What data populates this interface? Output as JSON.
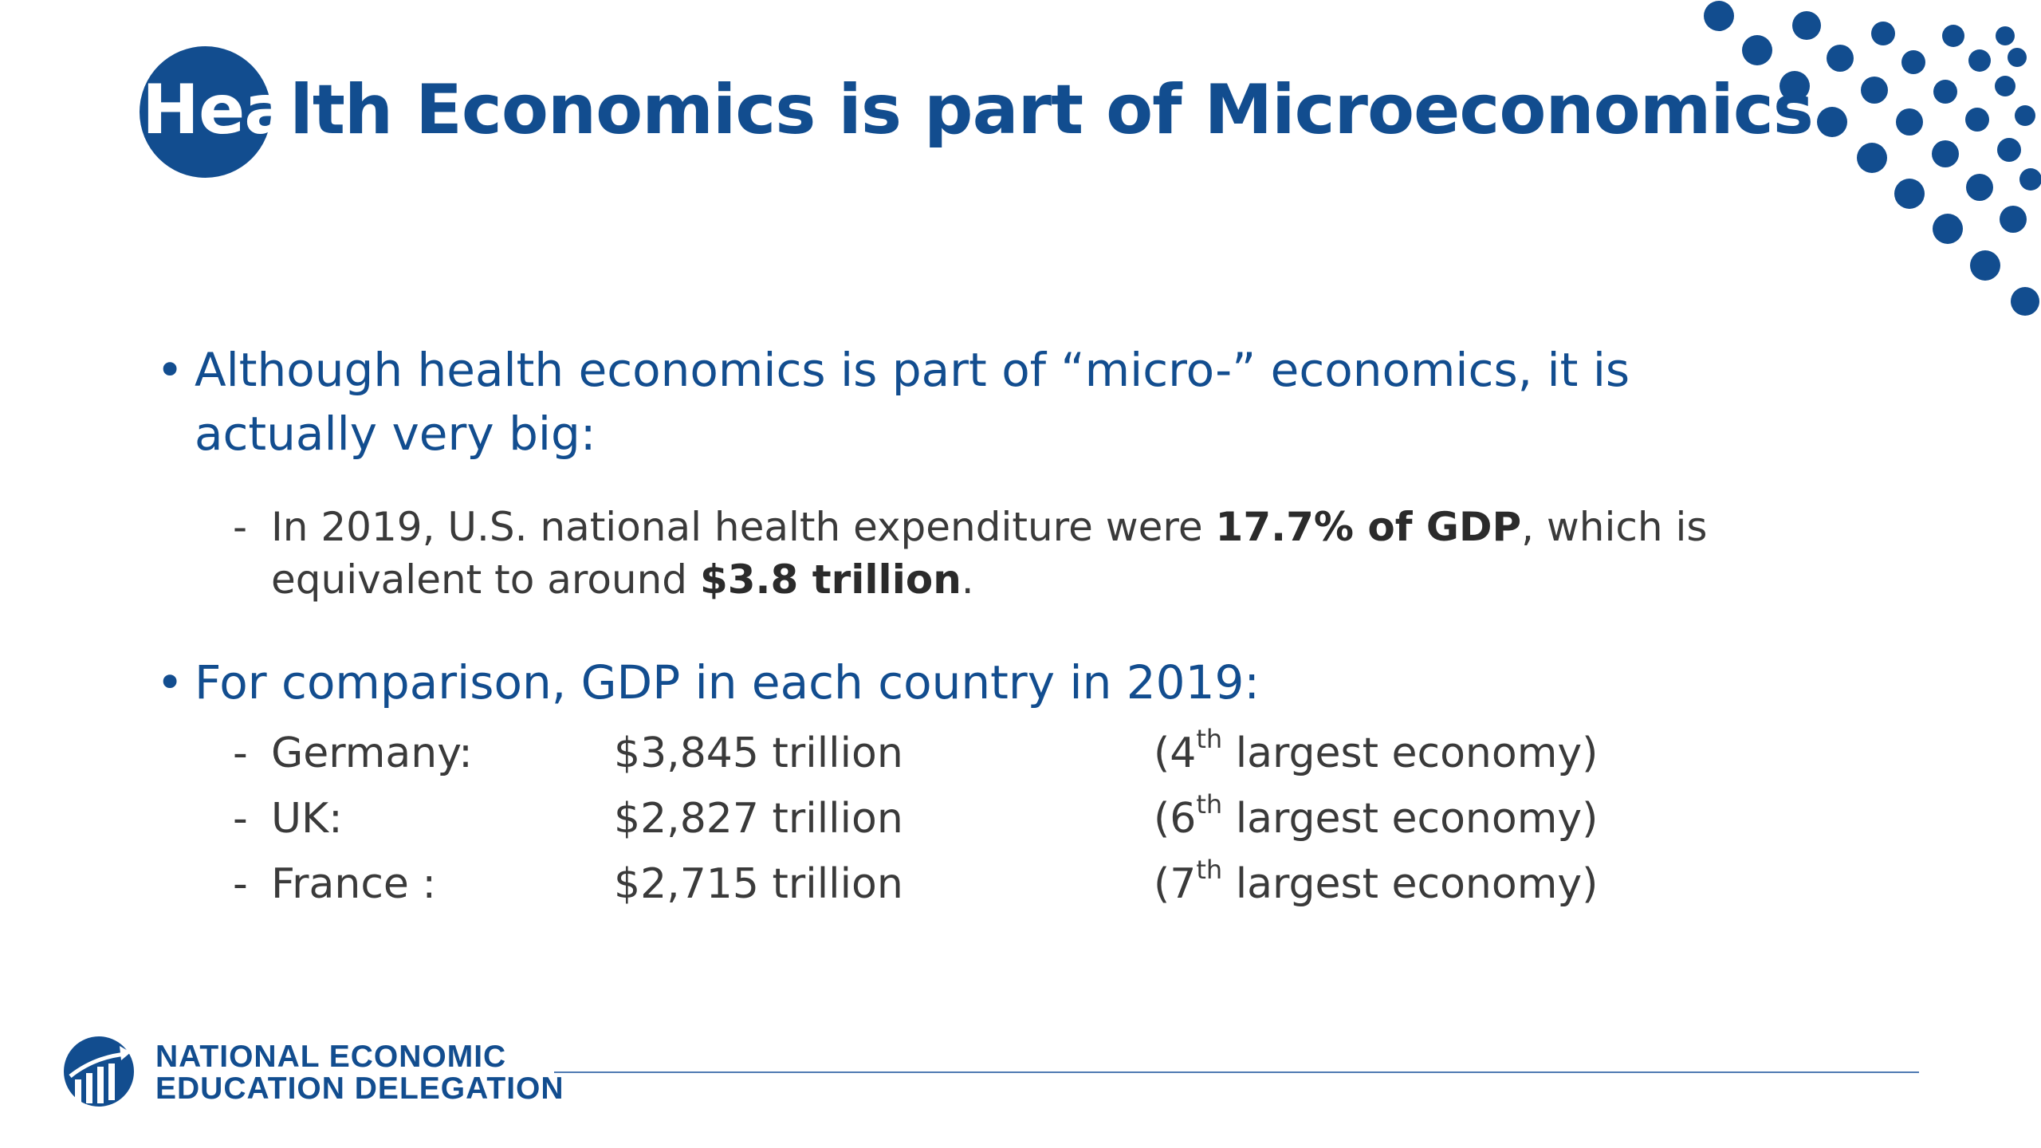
{
  "colors": {
    "brand": "#124D8F",
    "body_text": "#3a3a3a",
    "background": "#ffffff",
    "rule": "#4F7BB3"
  },
  "title": {
    "first": "Hea",
    "rest": "lth Economics is part of Microeconomics"
  },
  "bullet1": {
    "marker": "•",
    "text": "Although health economics is part of “micro-” economics, it is actually very big:"
  },
  "sub1": {
    "marker": "-",
    "part1": "In 2019, U.S. national health expenditure were ",
    "bold1": "17.7% of GDP",
    "part2": ", which is equivalent to around ",
    "bold2": "$3.8 trillion",
    "part3": "."
  },
  "bullet2": {
    "marker": "•",
    "text": "For comparison, GDP in each country in 2019:"
  },
  "gdp_rows": [
    {
      "marker": "-",
      "country": "Germany:",
      "value": "$3,845 trillion",
      "rank_pre": "(4",
      "rank_sup": "th",
      "rank_post": " largest economy)"
    },
    {
      "marker": "-",
      "country": "UK:",
      "value": "$2,827 trillion",
      "rank_pre": "(6",
      "rank_sup": "th",
      "rank_post": " largest economy)"
    },
    {
      "marker": "-",
      "country": "France :",
      "value": "$2,715 trillion",
      "rank_pre": "(7",
      "rank_sup": "th",
      "rank_post": " largest economy)"
    }
  ],
  "footer": {
    "org_line1": "NATIONAL ECONOMIC",
    "org_line2": "EDUCATION DELEGATION",
    "logo_icon": "bar-chart-globe-icon"
  }
}
